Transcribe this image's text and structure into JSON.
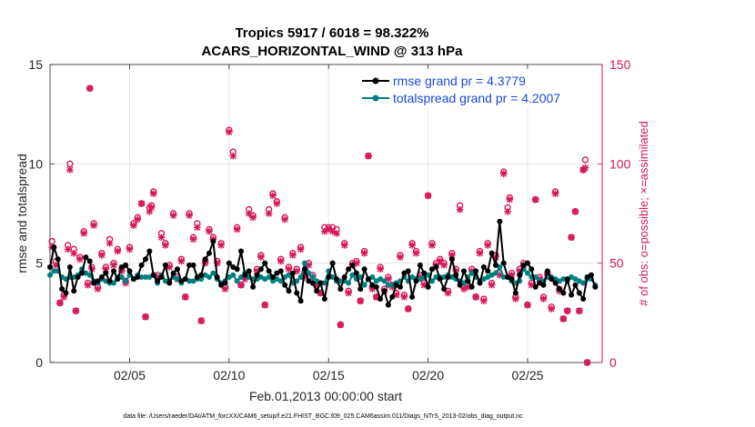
{
  "chart_data": {
    "type": "line",
    "title_line1": "Tropics 5917 / 6018 = 98.322%",
    "title_line2": "ACARS_HORIZONTAL_WIND @ 313 hPa",
    "xlabel": "Feb.01,2013 00:00:00 start",
    "ylabel_left": "rmse and totalspread",
    "ylabel_right": "# of obs: o=possible; ×=assimilated",
    "xlim": [
      1,
      28.75
    ],
    "ylim_left": [
      0,
      15
    ],
    "ylim_right": [
      0,
      150
    ],
    "x_ticks": [
      {
        "value": 5,
        "label": "02/05"
      },
      {
        "value": 10,
        "label": "02/10"
      },
      {
        "value": 15,
        "label": "02/15"
      },
      {
        "value": 20,
        "label": "02/20"
      },
      {
        "value": 25,
        "label": "02/25"
      }
    ],
    "y_ticks_left": [
      "0",
      "5",
      "10",
      "15"
    ],
    "y_ticks_right": [
      "0",
      "50",
      "100",
      "150"
    ],
    "grid": true,
    "legend_position": "top-right",
    "colors": {
      "rmse": "#000000",
      "totalspread": "#008080",
      "obs": "#d6175b",
      "legend_text": "#1a49d6",
      "grid": "#e5e5e5"
    },
    "series": [
      {
        "name": "rmse grand pr = 4.3779",
        "values": [
          4.8,
          5.8,
          5.2,
          3.7,
          3.5,
          4.8,
          3.6,
          4.3,
          4.5,
          5.3,
          5.1,
          4.0,
          4.1,
          4.3,
          4.5,
          4.1,
          4.6,
          4.2,
          4.8,
          4.9,
          4.6,
          4.2,
          4.3,
          4.9,
          5.2,
          5.6,
          4.4,
          4.1,
          4.3,
          4.9,
          4.0,
          4.5,
          4.7,
          4.1,
          4.2,
          4.9,
          4.9,
          4.3,
          4.4,
          5.2,
          5.5,
          6.1,
          4.3,
          3.9,
          4.0,
          5.0,
          4.8,
          4.7,
          5.6,
          4.4,
          4.6,
          3.8,
          4.4,
          4.7,
          5.0,
          4.6,
          4.3,
          4.5,
          4.6,
          3.9,
          3.6,
          4.5,
          3.5,
          3.1,
          4.7,
          4.1,
          4.0,
          3.6,
          4.0,
          3.2,
          4.3,
          5.0,
          4.2,
          3.7,
          4.3,
          4.7,
          4.9,
          4.5,
          3.7,
          4.7,
          4.2,
          3.9,
          3.8,
          3.2,
          3.6,
          2.9,
          3.3,
          3.9,
          3.8,
          4.5,
          4.6,
          3.3,
          4.1,
          4.9,
          4.5,
          3.8,
          4.7,
          4.8,
          4.2,
          3.7,
          4.3,
          5.2,
          4.4,
          3.9,
          4.6,
          4.1,
          3.8,
          4.6,
          4.0,
          4.8,
          4.6,
          5.5,
          4.9,
          7.1,
          5.0,
          4.3,
          4.2,
          3.5,
          4.4,
          4.9,
          5.0,
          4.7,
          3.8,
          4.0,
          3.9,
          4.6,
          4.2,
          4.0,
          3.7,
          3.5,
          4.2,
          3.4,
          3.9,
          3.5,
          3.2,
          4.3,
          4.4,
          3.8
        ],
        "x_start": 1,
        "x_step": 0.2
      },
      {
        "name": "totalspread grand pr = 4.2007",
        "values": [
          4.4,
          4.6,
          4.6,
          4.3,
          4.2,
          4.3,
          4.3,
          4.4,
          4.7,
          4.5,
          4.4,
          4.1,
          4.0,
          4.2,
          4.1,
          4.0,
          4.0,
          4.3,
          4.3,
          4.1,
          4.4,
          4.2,
          4.4,
          4.3,
          4.3,
          4.3,
          4.4,
          4.0,
          4.4,
          4.1,
          4.1,
          4.3,
          4.2,
          4.0,
          4.2,
          4.1,
          4.1,
          4.2,
          4.2,
          4.4,
          4.3,
          4.5,
          4.2,
          4.0,
          4.1,
          4.3,
          4.4,
          4.1,
          4.3,
          4.5,
          4.3,
          4.2,
          4.2,
          4.3,
          4.2,
          4.3,
          4.1,
          4.2,
          4.1,
          4.3,
          4.4,
          4.0,
          4.1,
          4.3,
          5.0,
          4.5,
          4.3,
          4.1,
          4.0,
          4.0,
          4.6,
          4.3,
          4.1,
          4.1,
          4.1,
          4.0,
          4.4,
          4.2,
          4.3,
          3.9,
          4.2,
          4.3,
          4.1,
          4.2,
          4.1,
          3.9,
          3.9,
          4.0,
          4.1,
          4.3,
          4.1,
          4.3,
          4.2,
          4.2,
          4.3,
          4.4,
          4.1,
          4.3,
          4.3,
          4.3,
          4.4,
          4.3,
          4.2,
          4.1,
          4.0,
          4.3,
          4.5,
          4.3,
          4.1,
          4.2,
          4.3,
          4.4,
          4.5,
          4.8,
          4.3,
          4.3,
          4.1,
          4.0,
          4.1,
          4.7,
          4.5,
          4.3,
          4.3,
          4.1,
          4.1,
          4.3,
          4.3,
          4.2,
          4.1,
          4.2,
          4.1,
          4.3,
          4.2,
          4.1,
          4.0,
          4.2,
          4.2,
          3.9
        ],
        "x_start": 1,
        "x_step": 0.2
      }
    ],
    "obs_possible": [
      [
        1.1,
        61
      ],
      [
        1.3,
        51
      ],
      [
        1.5,
        30
      ],
      [
        1.7,
        34
      ],
      [
        1.9,
        59
      ],
      [
        2.0,
        100
      ],
      [
        2.2,
        57
      ],
      [
        2.3,
        26
      ],
      [
        2.5,
        53
      ],
      [
        2.7,
        66
      ],
      [
        2.9,
        40
      ],
      [
        3.0,
        138
      ],
      [
        3.1,
        48
      ],
      [
        3.2,
        70
      ],
      [
        3.4,
        38
      ],
      [
        3.6,
        55
      ],
      [
        3.8,
        48
      ],
      [
        4.0,
        62
      ],
      [
        4.2,
        50
      ],
      [
        4.4,
        57
      ],
      [
        4.6,
        47
      ],
      [
        4.8,
        41
      ],
      [
        5.0,
        58
      ],
      [
        5.2,
        70
      ],
      [
        5.4,
        73
      ],
      [
        5.6,
        80
      ],
      [
        5.8,
        23
      ],
      [
        6.0,
        78
      ],
      [
        6.1,
        79
      ],
      [
        6.2,
        86
      ],
      [
        6.4,
        44
      ],
      [
        6.6,
        65
      ],
      [
        6.8,
        60
      ],
      [
        7.0,
        49
      ],
      [
        7.2,
        75
      ],
      [
        7.4,
        43
      ],
      [
        7.6,
        52
      ],
      [
        7.8,
        33
      ],
      [
        8.0,
        75
      ],
      [
        8.2,
        63
      ],
      [
        8.4,
        70
      ],
      [
        8.6,
        21
      ],
      [
        8.8,
        51
      ],
      [
        9.0,
        67
      ],
      [
        9.2,
        63
      ],
      [
        9.4,
        51
      ],
      [
        9.6,
        60
      ],
      [
        9.8,
        38
      ],
      [
        10.0,
        117
      ],
      [
        10.2,
        106
      ],
      [
        10.4,
        68
      ],
      [
        10.6,
        39
      ],
      [
        10.8,
        43
      ],
      [
        11.0,
        77
      ],
      [
        11.2,
        74
      ],
      [
        11.4,
        47
      ],
      [
        11.6,
        54
      ],
      [
        11.8,
        29
      ],
      [
        12.0,
        77
      ],
      [
        12.2,
        85
      ],
      [
        12.4,
        81
      ],
      [
        12.6,
        52
      ],
      [
        12.8,
        73
      ],
      [
        13.0,
        48
      ],
      [
        13.2,
        55
      ],
      [
        13.4,
        47
      ],
      [
        13.6,
        58
      ],
      [
        13.8,
        44
      ],
      [
        14.0,
        50
      ],
      [
        14.2,
        44
      ],
      [
        14.4,
        40
      ],
      [
        14.6,
        35
      ],
      [
        14.8,
        68
      ],
      [
        15.0,
        68
      ],
      [
        15.2,
        68
      ],
      [
        15.4,
        67
      ],
      [
        15.6,
        19
      ],
      [
        15.8,
        60
      ],
      [
        16.0,
        36
      ],
      [
        16.2,
        50
      ],
      [
        16.4,
        51
      ],
      [
        16.6,
        31
      ],
      [
        16.8,
        56
      ],
      [
        17.0,
        104
      ],
      [
        17.2,
        38
      ],
      [
        17.4,
        33
      ],
      [
        17.6,
        48
      ],
      [
        17.8,
        37
      ],
      [
        18.0,
        43
      ],
      [
        18.2,
        39
      ],
      [
        18.4,
        35
      ],
      [
        18.6,
        54
      ],
      [
        18.8,
        34
      ],
      [
        19.0,
        27
      ],
      [
        19.2,
        60
      ],
      [
        19.4,
        56
      ],
      [
        19.6,
        44
      ],
      [
        19.8,
        40
      ],
      [
        20.0,
        84
      ],
      [
        20.2,
        60
      ],
      [
        20.4,
        50
      ],
      [
        20.6,
        52
      ],
      [
        20.8,
        50
      ],
      [
        21.0,
        36
      ],
      [
        21.2,
        55
      ],
      [
        21.4,
        47
      ],
      [
        21.6,
        79
      ],
      [
        21.8,
        38
      ],
      [
        22.0,
        39
      ],
      [
        22.2,
        47
      ],
      [
        22.4,
        33
      ],
      [
        22.6,
        56
      ],
      [
        22.8,
        32
      ],
      [
        23.0,
        60
      ],
      [
        23.2,
        40
      ],
      [
        23.4,
        54
      ],
      [
        23.6,
        45
      ],
      [
        23.8,
        96
      ],
      [
        24.0,
        78
      ],
      [
        24.1,
        83
      ],
      [
        24.2,
        45
      ],
      [
        24.4,
        33
      ],
      [
        24.6,
        47
      ],
      [
        24.8,
        50
      ],
      [
        25.0,
        29
      ],
      [
        25.2,
        40
      ],
      [
        25.4,
        82
      ],
      [
        25.6,
        43
      ],
      [
        25.8,
        33
      ],
      [
        26.0,
        45
      ],
      [
        26.2,
        28
      ],
      [
        26.4,
        86
      ],
      [
        26.6,
        37
      ],
      [
        26.8,
        22
      ],
      [
        27.0,
        26
      ],
      [
        27.2,
        63
      ],
      [
        27.4,
        76
      ],
      [
        27.6,
        26
      ],
      [
        27.8,
        97
      ],
      [
        27.9,
        102
      ],
      [
        28.0,
        0
      ]
    ],
    "obs_assimilated": [
      [
        1.1,
        58
      ],
      [
        1.3,
        49
      ],
      [
        1.5,
        30
      ],
      [
        1.7,
        33
      ],
      [
        1.9,
        57
      ],
      [
        2.0,
        97
      ],
      [
        2.2,
        55
      ],
      [
        2.3,
        26
      ],
      [
        2.5,
        52
      ],
      [
        2.7,
        65
      ],
      [
        2.9,
        39
      ],
      [
        3.0,
        138
      ],
      [
        3.1,
        47
      ],
      [
        3.2,
        69
      ],
      [
        3.4,
        37
      ],
      [
        3.6,
        54
      ],
      [
        3.8,
        47
      ],
      [
        4.0,
        60
      ],
      [
        4.2,
        49
      ],
      [
        4.4,
        56
      ],
      [
        4.6,
        46
      ],
      [
        4.8,
        40
      ],
      [
        5.0,
        57
      ],
      [
        5.2,
        69
      ],
      [
        5.4,
        72
      ],
      [
        5.6,
        80
      ],
      [
        5.8,
        23
      ],
      [
        6.0,
        76
      ],
      [
        6.1,
        78
      ],
      [
        6.2,
        85
      ],
      [
        6.4,
        43
      ],
      [
        6.6,
        63
      ],
      [
        6.8,
        59
      ],
      [
        7.0,
        48
      ],
      [
        7.2,
        74
      ],
      [
        7.4,
        42
      ],
      [
        7.6,
        51
      ],
      [
        7.8,
        33
      ],
      [
        8.0,
        74
      ],
      [
        8.2,
        62
      ],
      [
        8.4,
        68
      ],
      [
        8.6,
        21
      ],
      [
        8.8,
        50
      ],
      [
        9.0,
        66
      ],
      [
        9.2,
        62
      ],
      [
        9.4,
        50
      ],
      [
        9.6,
        59
      ],
      [
        9.8,
        37
      ],
      [
        10.0,
        116
      ],
      [
        10.2,
        104
      ],
      [
        10.4,
        67
      ],
      [
        10.6,
        39
      ],
      [
        10.8,
        42
      ],
      [
        11.0,
        75
      ],
      [
        11.2,
        73
      ],
      [
        11.4,
        46
      ],
      [
        11.6,
        53
      ],
      [
        11.8,
        29
      ],
      [
        12.0,
        75
      ],
      [
        12.2,
        84
      ],
      [
        12.4,
        80
      ],
      [
        12.6,
        51
      ],
      [
        12.8,
        72
      ],
      [
        13.0,
        47
      ],
      [
        13.2,
        54
      ],
      [
        13.4,
        46
      ],
      [
        13.6,
        57
      ],
      [
        13.8,
        43
      ],
      [
        14.0,
        49
      ],
      [
        14.2,
        43
      ],
      [
        14.4,
        39
      ],
      [
        14.6,
        35
      ],
      [
        14.8,
        66
      ],
      [
        15.0,
        67
      ],
      [
        15.2,
        66
      ],
      [
        15.4,
        65
      ],
      [
        15.6,
        19
      ],
      [
        15.8,
        59
      ],
      [
        16.0,
        35
      ],
      [
        16.2,
        49
      ],
      [
        16.4,
        50
      ],
      [
        16.6,
        31
      ],
      [
        16.8,
        55
      ],
      [
        17.0,
        104
      ],
      [
        17.2,
        37
      ],
      [
        17.4,
        33
      ],
      [
        17.6,
        47
      ],
      [
        17.8,
        36
      ],
      [
        18.0,
        42
      ],
      [
        18.2,
        38
      ],
      [
        18.4,
        34
      ],
      [
        18.6,
        53
      ],
      [
        18.8,
        33
      ],
      [
        19.0,
        27
      ],
      [
        19.2,
        59
      ],
      [
        19.4,
        55
      ],
      [
        19.6,
        43
      ],
      [
        19.8,
        39
      ],
      [
        20.0,
        84
      ],
      [
        20.2,
        59
      ],
      [
        20.4,
        49
      ],
      [
        20.6,
        51
      ],
      [
        20.8,
        49
      ],
      [
        21.0,
        35
      ],
      [
        21.2,
        54
      ],
      [
        21.4,
        46
      ],
      [
        21.6,
        77
      ],
      [
        21.8,
        37
      ],
      [
        22.0,
        38
      ],
      [
        22.2,
        46
      ],
      [
        22.4,
        33
      ],
      [
        22.6,
        55
      ],
      [
        22.8,
        31
      ],
      [
        23.0,
        59
      ],
      [
        23.2,
        39
      ],
      [
        23.4,
        53
      ],
      [
        23.6,
        44
      ],
      [
        23.8,
        95
      ],
      [
        24.0,
        76
      ],
      [
        24.1,
        82
      ],
      [
        24.2,
        44
      ],
      [
        24.4,
        32
      ],
      [
        24.6,
        46
      ],
      [
        24.8,
        49
      ],
      [
        25.0,
        29
      ],
      [
        25.2,
        39
      ],
      [
        25.4,
        82
      ],
      [
        25.6,
        42
      ],
      [
        25.8,
        32
      ],
      [
        26.0,
        44
      ],
      [
        26.2,
        27
      ],
      [
        26.4,
        85
      ],
      [
        26.6,
        36
      ],
      [
        26.8,
        22
      ],
      [
        27.0,
        26
      ],
      [
        27.2,
        63
      ],
      [
        27.4,
        76
      ],
      [
        27.6,
        26
      ],
      [
        27.8,
        97
      ],
      [
        27.9,
        98
      ],
      [
        28.0,
        0
      ]
    ]
  },
  "footer": "data file: /Users/raeder/DAI/ATM_forcXX/CAM6_setup/f.e21.FHIST_BGC.f09_025.CAM6assim.011/Diags_NTrS_2013-02/obs_diag_output.nc"
}
